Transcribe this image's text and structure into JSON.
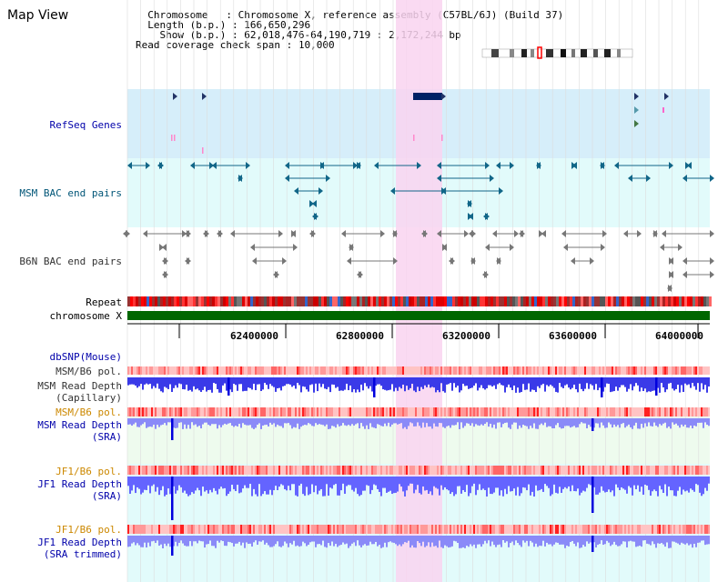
{
  "panel": {
    "title": "Map View"
  },
  "info": {
    "chromosome_label": "Chromosome",
    "chromosome_value": "Chromosome X, reference assembly (C57BL/6J) (Build 37)",
    "length_label": "Length (b.p.)",
    "length_value": "166,650,296",
    "show_label": "Show (b.p.)",
    "show_value": "62,018,476-64,190,719 : 2,172,244 bp",
    "span_label": "Read coverage check span",
    "span_value": "10,000"
  },
  "tracks": {
    "refseq": "RefSeq Genes",
    "msm_bac": "MSM BAC end pairs",
    "b6n_bac": "B6N BAC end pairs",
    "repeat": "Repeat",
    "chromosome": "chromosome X",
    "dbsnp": "dbSNP(Mouse)",
    "msm_b6_pol_1": "MSM/B6 pol.",
    "msm_depth_cap": "MSM Read Depth\n(Capillary)",
    "msm_b6_pol_2": "MSM/B6 pol.",
    "msm_depth_sra": "MSM Read Depth\n(SRA)",
    "jf1_b6_pol_1": "JF1/B6 pol.",
    "jf1_depth_sra": "JF1 Read Depth\n(SRA)",
    "jf1_b6_pol_2": "JF1/B6 pol.",
    "jf1_depth_trim": "JF1 Read Depth\n(SRA trimmed)"
  },
  "ruler": {
    "ticks": [
      "62400000",
      "62800000",
      "63200000",
      "63600000",
      "64000000"
    ]
  },
  "colors": {
    "highlight": "#f9d3f0",
    "refseq_bg": "#d6eefa",
    "bac_bg": "#e2fbfb",
    "chromosome": "#006600",
    "depth": "#6464ff",
    "pol": "#ff9999"
  }
}
